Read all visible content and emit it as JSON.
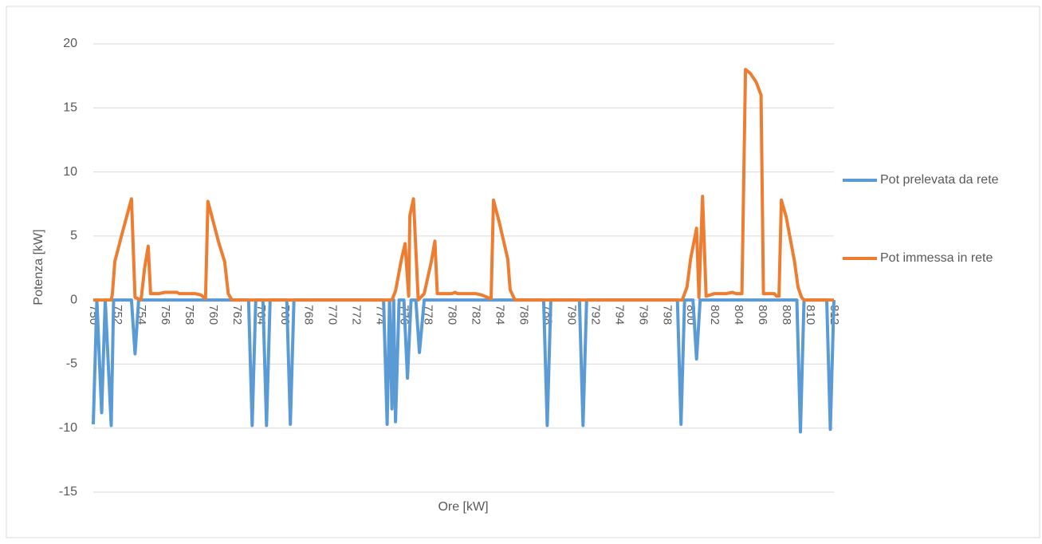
{
  "chart_data": {
    "type": "line",
    "x_label": "Ore [kW]",
    "y_label": "Potenza [kW]",
    "xlim": [
      750,
      812
    ],
    "ylim": [
      -15,
      20
    ],
    "yticks": [
      -15,
      -10,
      -5,
      0,
      5,
      10,
      15,
      20
    ],
    "xticks": [
      750,
      752,
      754,
      756,
      758,
      760,
      762,
      764,
      766,
      768,
      770,
      772,
      774,
      776,
      778,
      780,
      782,
      784,
      786,
      788,
      790,
      792,
      794,
      796,
      798,
      800,
      802,
      804,
      806,
      808,
      810,
      812
    ],
    "grid": true,
    "legend": "right",
    "series": [
      {
        "name": "Pot prelevata da rete",
        "color": "#5b9bd5",
        "x": [
          750,
          750.3,
          750.7,
          751,
          751.5,
          751.7,
          753.2,
          753.5,
          753.8,
          763,
          763.3,
          763.6,
          764.2,
          764.5,
          764.8,
          766.2,
          766.5,
          766.8,
          774.3,
          774.6,
          774.8,
          775,
          775.15,
          775.3,
          775.6,
          776,
          776.3,
          776.6,
          777,
          777.3,
          777.7,
          787.7,
          788,
          788.3,
          790.7,
          791,
          791.3,
          798.9,
          799.2,
          799.5,
          800.2,
          800.5,
          800.8,
          808.9,
          809.2,
          809.5,
          811.4,
          811.7,
          812
        ],
        "values": [
          -9.7,
          0,
          -8.8,
          0,
          -9.8,
          0,
          0,
          -4.2,
          0,
          0,
          -9.8,
          0,
          0,
          -9.8,
          0,
          0,
          -9.7,
          0,
          0,
          -9.7,
          0,
          -8.5,
          0,
          -9.5,
          0,
          0,
          -6.1,
          0,
          0,
          -4.1,
          0,
          0,
          -9.8,
          0,
          0,
          -9.8,
          0,
          0,
          -9.7,
          0,
          0,
          -4.6,
          0,
          0,
          -10.3,
          0,
          0,
          -10.1,
          0
        ]
      },
      {
        "name": "Pot immessa in rete",
        "color": "#ed7d31",
        "x": [
          750,
          751.5,
          751.6,
          751.8,
          752.5,
          753.2,
          753.5,
          754,
          754.3,
          754.6,
          754.8,
          755.5,
          756,
          757,
          757.2,
          758.5,
          759,
          759.4,
          759.6,
          760.5,
          761,
          761.3,
          761.6,
          775,
          775.3,
          775.8,
          776.1,
          776.4,
          776.5,
          776.8,
          777.2,
          777.7,
          778.3,
          778.6,
          778.8,
          780,
          780.3,
          780.5,
          782,
          782.5,
          783,
          783.3,
          783.5,
          784,
          784.7,
          784.9,
          785.3,
          799.3,
          799.7,
          800,
          800.5,
          800.7,
          801,
          801.3,
          802,
          803,
          803.5,
          803.8,
          804.3,
          804.6,
          805,
          805.5,
          805.9,
          806.1,
          807,
          807.2,
          807.4,
          807.6,
          808,
          808.7,
          809,
          809.3,
          809.5,
          812
        ],
        "values": [
          0,
          0,
          0.5,
          3,
          5.5,
          7.9,
          0.2,
          0,
          2.5,
          4.2,
          0.5,
          0.5,
          0.6,
          0.6,
          0.5,
          0.5,
          0.4,
          0.1,
          7.7,
          4.5,
          3,
          0.5,
          0,
          0,
          0.7,
          3.2,
          4.4,
          0.3,
          6.6,
          7.9,
          0,
          0.5,
          3,
          4.6,
          0.5,
          0.5,
          0.6,
          0.5,
          0.5,
          0.4,
          0.2,
          0.1,
          7.8,
          6,
          3.2,
          0.8,
          0,
          0,
          1,
          3.2,
          5.6,
          0.2,
          8.1,
          0.3,
          0.5,
          0.5,
          0.6,
          0.5,
          0.5,
          18,
          17.7,
          17,
          16,
          0.5,
          0.5,
          0.3,
          0.3,
          7.8,
          6.5,
          3,
          1,
          0.2,
          0,
          0
        ]
      }
    ]
  }
}
